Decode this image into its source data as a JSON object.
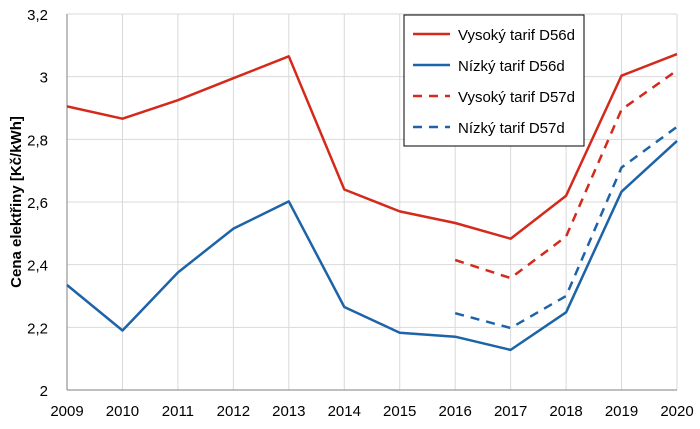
{
  "chart_data": {
    "type": "line",
    "title": "",
    "xlabel": "",
    "ylabel": "Cena elektřiny [Kč/kWh]",
    "x": [
      2009,
      2010,
      2011,
      2012,
      2013,
      2014,
      2015,
      2016,
      2017,
      2018,
      2019,
      2020
    ],
    "ylim": [
      2,
      3.2
    ],
    "yticks": [
      "2",
      "2,2",
      "2,4",
      "2,6",
      "2,8",
      "3",
      "3,2"
    ],
    "ytick_values": [
      2,
      2.2,
      2.4,
      2.6,
      2.8,
      3.0,
      3.2
    ],
    "grid": true,
    "legend_position": "top-right",
    "series": [
      {
        "name": "Vysoký tarif D56d",
        "color": "#d42a1c",
        "dash": "solid",
        "x": [
          2009,
          2010,
          2011,
          2012,
          2013,
          2014,
          2015,
          2016,
          2017,
          2018,
          2019,
          2020
        ],
        "values": [
          2.905,
          2.866,
          2.925,
          2.995,
          3.065,
          2.64,
          2.57,
          2.533,
          2.483,
          2.62,
          3.003,
          3.072
        ]
      },
      {
        "name": "Nízký tarif D56d",
        "color": "#1d63a8",
        "dash": "solid",
        "x": [
          2009,
          2010,
          2011,
          2012,
          2013,
          2014,
          2015,
          2016,
          2017,
          2018,
          2019,
          2020
        ],
        "values": [
          2.335,
          2.19,
          2.375,
          2.515,
          2.602,
          2.265,
          2.183,
          2.17,
          2.128,
          2.248,
          2.633,
          2.795
        ]
      },
      {
        "name": "Vysoký tarif D57d",
        "color": "#d42a1c",
        "dash": "dashed",
        "x": [
          2016,
          2017,
          2018,
          2019,
          2020
        ],
        "values": [
          2.415,
          2.357,
          2.49,
          2.895,
          3.02
        ]
      },
      {
        "name": "Nízký tarif D57d",
        "color": "#1d63a8",
        "dash": "dashed",
        "x": [
          2016,
          2017,
          2018,
          2019,
          2020
        ],
        "values": [
          2.245,
          2.198,
          2.3,
          2.71,
          2.84
        ]
      }
    ]
  }
}
